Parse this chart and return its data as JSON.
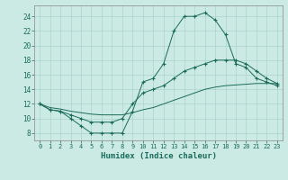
{
  "title": "",
  "xlabel": "Humidex (Indice chaleur)",
  "xlim": [
    -0.5,
    23.5
  ],
  "ylim": [
    7,
    25.5
  ],
  "yticks": [
    8,
    10,
    12,
    14,
    16,
    18,
    20,
    22,
    24
  ],
  "xticks": [
    0,
    1,
    2,
    3,
    4,
    5,
    6,
    7,
    8,
    9,
    10,
    11,
    12,
    13,
    14,
    15,
    16,
    17,
    18,
    19,
    20,
    21,
    22,
    23
  ],
  "bg_color": "#cceae4",
  "grid_color": "#aad4cc",
  "line_color": "#1a6b5a",
  "line1_x": [
    0,
    1,
    2,
    3,
    4,
    5,
    6,
    7,
    8,
    9,
    10,
    11,
    12,
    13,
    14,
    15,
    16,
    17,
    18,
    19,
    20,
    21,
    22,
    23
  ],
  "line1_y": [
    12,
    11.2,
    11,
    10,
    9,
    8,
    8,
    8,
    8,
    11,
    15,
    15.5,
    17.5,
    22,
    24,
    24,
    24.5,
    23.5,
    21.5,
    17.5,
    17,
    15.5,
    15,
    14.5
  ],
  "line2_x": [
    0,
    1,
    2,
    3,
    4,
    5,
    6,
    7,
    8,
    9,
    10,
    11,
    12,
    13,
    14,
    15,
    16,
    17,
    18,
    19,
    20,
    21,
    22,
    23
  ],
  "line2_y": [
    12,
    11.2,
    11,
    10.5,
    10,
    9.5,
    9.5,
    9.5,
    10,
    12,
    13.5,
    14,
    14.5,
    15.5,
    16.5,
    17,
    17.5,
    18,
    18,
    18,
    17.5,
    16.5,
    15.5,
    14.8
  ],
  "line3_x": [
    0,
    1,
    2,
    3,
    4,
    5,
    6,
    7,
    8,
    9,
    10,
    11,
    12,
    13,
    14,
    15,
    16,
    17,
    18,
    19,
    20,
    21,
    22,
    23
  ],
  "line3_y": [
    12,
    11.5,
    11.3,
    11.0,
    10.8,
    10.6,
    10.5,
    10.5,
    10.5,
    10.8,
    11.2,
    11.5,
    12.0,
    12.5,
    13.0,
    13.5,
    14.0,
    14.3,
    14.5,
    14.6,
    14.7,
    14.8,
    14.8,
    14.8
  ]
}
